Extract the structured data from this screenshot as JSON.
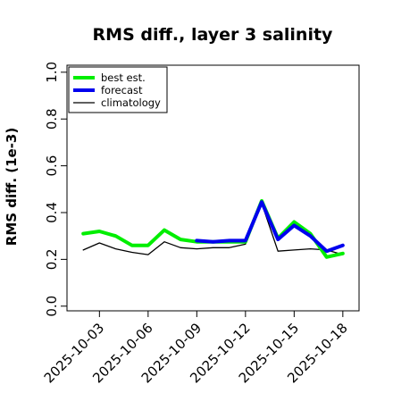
{
  "chart_data": {
    "type": "line",
    "title": "RMS diff., layer 3 salinity",
    "xlabel": "",
    "ylabel": "RMS diff. (1e-3)",
    "ylim": [
      -0.02,
      1.03
    ],
    "yticks": [
      0.0,
      0.2,
      0.4,
      0.6,
      0.8,
      1.0
    ],
    "ytick_labels": [
      "0.0",
      "0.2",
      "0.4",
      "0.6",
      "0.8",
      "1.0"
    ],
    "xticks": [
      "2025-10-03",
      "2025-10-06",
      "2025-10-09",
      "2025-10-12",
      "2025-10-15",
      "2025-10-18"
    ],
    "highlight_tick": "2025-10-09",
    "highlight_color": "#228b22",
    "grid": false,
    "legend_position": "top-left",
    "x": [
      "2025-10-02",
      "2025-10-03",
      "2025-10-04",
      "2025-10-05",
      "2025-10-06",
      "2025-10-07",
      "2025-10-08",
      "2025-10-09",
      "2025-10-10",
      "2025-10-11",
      "2025-10-12",
      "2025-10-13",
      "2025-10-14",
      "2025-10-15",
      "2025-10-16",
      "2025-10-17",
      "2025-10-18"
    ],
    "series": [
      {
        "name": "best est.",
        "color": "#00ee00",
        "values": [
          0.31,
          0.32,
          0.3,
          0.26,
          0.26,
          0.325,
          0.285,
          0.275,
          0.275,
          0.275,
          0.275,
          0.45,
          0.29,
          0.36,
          0.31,
          0.21,
          0.225
        ]
      },
      {
        "name": "forecast",
        "color": "#0000ee",
        "values": [
          null,
          null,
          null,
          null,
          null,
          null,
          null,
          0.28,
          0.275,
          0.28,
          0.28,
          0.445,
          0.285,
          0.345,
          0.3,
          0.235,
          0.26
        ]
      },
      {
        "name": "climatology",
        "color": "#000000",
        "values": [
          0.24,
          0.27,
          0.245,
          0.23,
          0.22,
          0.275,
          0.25,
          0.245,
          0.25,
          0.25,
          0.265,
          0.44,
          0.235,
          0.24,
          0.245,
          0.24,
          0.22
        ]
      }
    ]
  }
}
